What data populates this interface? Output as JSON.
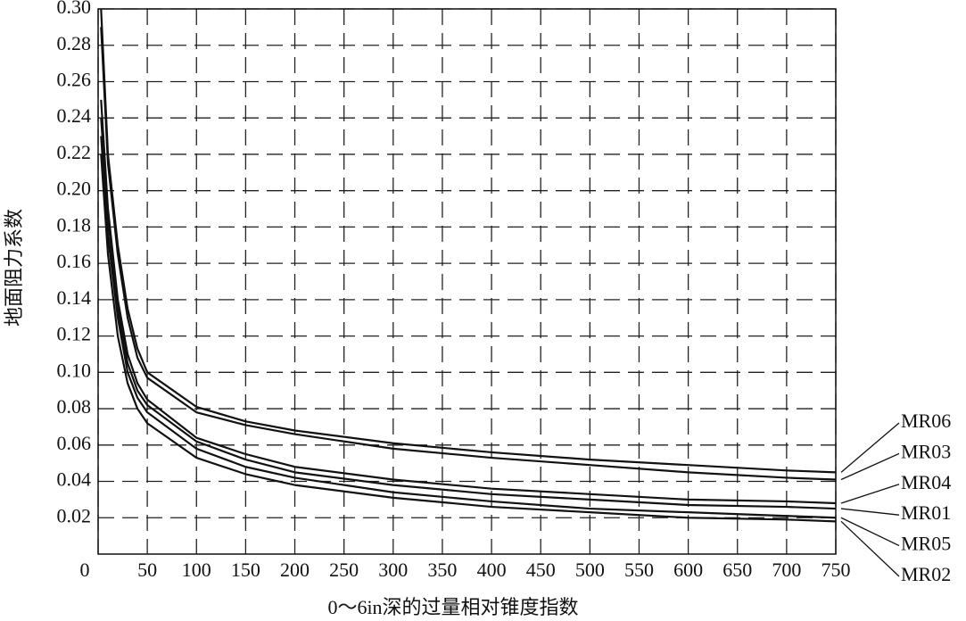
{
  "chart_data": {
    "type": "line",
    "x_label": "0～6in深的过量相对锥度指数",
    "y_label": "地面阻力系数",
    "x": [
      3,
      10,
      20,
      30,
      40,
      50,
      100,
      150,
      200,
      300,
      400,
      500,
      600,
      700,
      750
    ],
    "series": [
      {
        "name": "MR06",
        "color": "#111111",
        "values": [
          0.3,
          0.22,
          0.17,
          0.135,
          0.113,
          0.1,
          0.081,
          0.073,
          0.068,
          0.061,
          0.056,
          0.052,
          0.049,
          0.046,
          0.045
        ]
      },
      {
        "name": "MR03",
        "color": "#111111",
        "values": [
          0.29,
          0.215,
          0.165,
          0.13,
          0.108,
          0.097,
          0.078,
          0.071,
          0.066,
          0.058,
          0.053,
          0.049,
          0.045,
          0.042,
          0.041
        ]
      },
      {
        "name": "MR04",
        "color": "#111111",
        "values": [
          0.25,
          0.19,
          0.14,
          0.11,
          0.094,
          0.085,
          0.064,
          0.055,
          0.048,
          0.041,
          0.036,
          0.033,
          0.03,
          0.029,
          0.028
        ]
      },
      {
        "name": "MR01",
        "color": "#111111",
        "values": [
          0.24,
          0.185,
          0.135,
          0.105,
          0.09,
          0.082,
          0.062,
          0.052,
          0.045,
          0.038,
          0.033,
          0.03,
          0.027,
          0.026,
          0.025
        ]
      },
      {
        "name": "MR05",
        "color": "#111111",
        "values": [
          0.23,
          0.175,
          0.13,
          0.1,
          0.086,
          0.078,
          0.058,
          0.048,
          0.042,
          0.034,
          0.029,
          0.025,
          0.023,
          0.021,
          0.02
        ]
      },
      {
        "name": "MR02",
        "color": "#111111",
        "values": [
          0.22,
          0.165,
          0.12,
          0.094,
          0.08,
          0.072,
          0.053,
          0.044,
          0.038,
          0.031,
          0.026,
          0.023,
          0.02,
          0.019,
          0.018
        ]
      }
    ],
    "xlim": [
      0,
      750
    ],
    "xticks": [
      0,
      50,
      100,
      150,
      200,
      250,
      300,
      350,
      400,
      450,
      500,
      550,
      600,
      650,
      700,
      750
    ],
    "ylim": [
      0,
      0.3
    ],
    "yticks": [
      {
        "value": 0.02,
        "label": "0.02"
      },
      {
        "value": 0.04,
        "label": "0.04"
      },
      {
        "value": 0.06,
        "label": "0.06"
      },
      {
        "value": 0.08,
        "label": "0.08"
      },
      {
        "value": 0.1,
        "label": "0.10"
      },
      {
        "value": 0.12,
        "label": "0.12"
      },
      {
        "value": 0.14,
        "label": "0.14"
      },
      {
        "value": 0.16,
        "label": "0.16"
      },
      {
        "value": 0.18,
        "label": "0.18"
      },
      {
        "value": 0.2,
        "label": "0.20"
      },
      {
        "value": 0.22,
        "label": "0.22"
      },
      {
        "value": 0.24,
        "label": "0.24"
      },
      {
        "value": 0.26,
        "label": "0.26"
      },
      {
        "value": 0.28,
        "label": "0.28"
      },
      {
        "value": 0.3,
        "label": "0.30"
      }
    ],
    "grid": true,
    "legend": "right"
  }
}
